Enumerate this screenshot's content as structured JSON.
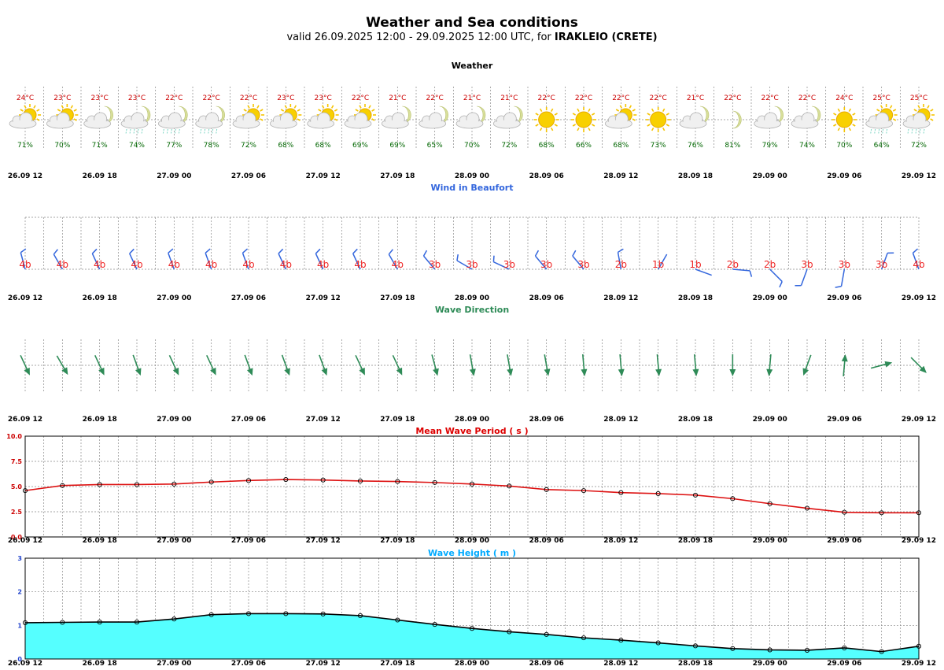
{
  "header": {
    "title": "Weather and Sea conditions",
    "subtitle_prefix": "valid 26.09.2025 12:00 - 29.09.2025 12:00 UTC, for ",
    "location": "IRAKLEIO (CRETE)"
  },
  "x_tick_labels": [
    "26.09 12",
    "26.09 18",
    "27.09 00",
    "27.09 06",
    "27.09 12",
    "27.09 18",
    "28.09 00",
    "28.09 06",
    "28.09 12",
    "28.09 18",
    "29.09 00",
    "29.09 06",
    "29.09 12"
  ],
  "colors": {
    "temp": "#cc0000",
    "humidity": "#006600",
    "wind": "#3366dd",
    "beaufort": "#ee2222",
    "wave_dir": "#2e8b57",
    "period_line": "#dd1111",
    "period_title": "#dd0000",
    "height_fill": "#55ffff",
    "height_title": "#00aaff",
    "axis_blue": "#2244cc",
    "axis_red": "#cc0000"
  },
  "chart_data": [
    {
      "type": "table",
      "title": "Weather",
      "times": [
        "26.09 12",
        "26.09 15",
        "26.09 18",
        "26.09 21",
        "27.09 00",
        "27.09 03",
        "27.09 06",
        "27.09 09",
        "27.09 12",
        "27.09 15",
        "27.09 18",
        "27.09 21",
        "28.09 00",
        "28.09 03",
        "28.09 06",
        "28.09 09",
        "28.09 12",
        "28.09 15",
        "28.09 18",
        "28.09 21",
        "29.09 00",
        "29.09 03",
        "29.09 06",
        "29.09 09",
        "29.09 12"
      ],
      "temperature": [
        "24°C",
        "23°C",
        "23°C",
        "23°C",
        "22°C",
        "22°C",
        "22°C",
        "23°C",
        "23°C",
        "22°C",
        "21°C",
        "22°C",
        "21°C",
        "21°C",
        "22°C",
        "22°C",
        "22°C",
        "22°C",
        "21°C",
        "22°C",
        "22°C",
        "22°C",
        "24°C",
        "25°C",
        "25°C"
      ],
      "humidity": [
        "71%",
        "70%",
        "71%",
        "74%",
        "77%",
        "78%",
        "72%",
        "68%",
        "68%",
        "69%",
        "69%",
        "65%",
        "70%",
        "72%",
        "68%",
        "66%",
        "68%",
        "73%",
        "76%",
        "81%",
        "79%",
        "74%",
        "70%",
        "64%",
        "72%"
      ],
      "icons": [
        "sun-cloud-icon",
        "sun-cloud-icon",
        "moon-cloud-icon",
        "moon-cloud-rain-icon",
        "moon-cloud-rain-icon",
        "moon-cloud-rain-icon",
        "sun-cloud-icon",
        "sun-cloud-icon",
        "sun-cloud-icon",
        "sun-cloud-icon",
        "moon-cloud-icon",
        "moon-cloud-icon",
        "moon-cloud-icon",
        "moon-cloud-icon",
        "sun-icon",
        "sun-icon",
        "sun-cloud-icon",
        "sun-icon",
        "moon-cloud-icon",
        "moon-icon",
        "moon-cloud-icon",
        "moon-cloud-icon",
        "sun-icon",
        "sun-cloud-rain-icon",
        "sun-cloud-rain-icon"
      ]
    },
    {
      "type": "table",
      "title": "Wind in Beaufort",
      "beaufort": [
        "4b",
        "4b",
        "4b",
        "4b",
        "4b",
        "4b",
        "4b",
        "4b",
        "4b",
        "4b",
        "4b",
        "3b",
        "3b",
        "3b",
        "3b",
        "3b",
        "2b",
        "1b",
        "1b",
        "2b",
        "2b",
        "3b",
        "3b",
        "3b",
        "4b"
      ],
      "wind_from_deg": [
        345,
        330,
        335,
        335,
        340,
        340,
        340,
        335,
        335,
        335,
        330,
        320,
        300,
        295,
        320,
        320,
        350,
        30,
        110,
        95,
        135,
        200,
        190,
        20,
        340
      ]
    },
    {
      "type": "table",
      "title": "Wave Direction",
      "wave_to_deg": [
        155,
        150,
        155,
        160,
        155,
        155,
        160,
        160,
        160,
        155,
        155,
        165,
        170,
        170,
        170,
        175,
        175,
        175,
        175,
        180,
        185,
        200,
        5,
        75,
        135
      ]
    },
    {
      "type": "line",
      "title": "Mean Wave Period ( s )",
      "ylim": [
        0,
        10
      ],
      "yticks": [
        "0.0",
        "2.5",
        "5.0",
        "7.5",
        "10.0"
      ],
      "x": [
        "26.09 12",
        "26.09 15",
        "26.09 18",
        "26.09 21",
        "27.09 00",
        "27.09 03",
        "27.09 06",
        "27.09 09",
        "27.09 12",
        "27.09 15",
        "27.09 18",
        "27.09 21",
        "28.09 00",
        "28.09 03",
        "28.09 06",
        "28.09 09",
        "28.09 12",
        "28.09 15",
        "28.09 18",
        "28.09 21",
        "29.09 00",
        "29.09 03",
        "29.09 06",
        "29.09 09",
        "29.09 12"
      ],
      "values": [
        4.6,
        5.1,
        5.2,
        5.2,
        5.25,
        5.45,
        5.6,
        5.7,
        5.65,
        5.55,
        5.5,
        5.4,
        5.25,
        5.05,
        4.7,
        4.6,
        4.4,
        4.3,
        4.15,
        3.8,
        3.3,
        2.85,
        2.45,
        2.4,
        2.4
      ]
    },
    {
      "type": "area",
      "title": "Wave Height ( m )",
      "ylim": [
        0,
        3
      ],
      "yticks": [
        "0",
        "1",
        "2",
        "3"
      ],
      "x": [
        "26.09 12",
        "26.09 15",
        "26.09 18",
        "26.09 21",
        "27.09 00",
        "27.09 03",
        "27.09 06",
        "27.09 09",
        "27.09 12",
        "27.09 15",
        "27.09 18",
        "27.09 21",
        "28.09 00",
        "28.09 03",
        "28.09 06",
        "28.09 09",
        "28.09 12",
        "28.09 15",
        "28.09 18",
        "28.09 21",
        "29.09 00",
        "29.09 03",
        "29.09 06",
        "29.09 09",
        "29.09 12"
      ],
      "values": [
        1.08,
        1.09,
        1.1,
        1.1,
        1.19,
        1.32,
        1.35,
        1.35,
        1.34,
        1.29,
        1.16,
        1.03,
        0.91,
        0.81,
        0.73,
        0.63,
        0.56,
        0.48,
        0.39,
        0.31,
        0.27,
        0.26,
        0.33,
        0.22,
        0.38
      ]
    }
  ]
}
